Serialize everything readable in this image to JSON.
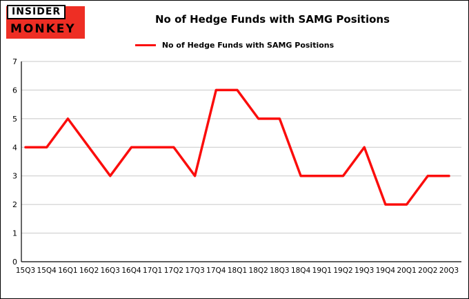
{
  "logo": {
    "line1": "INSIDER",
    "line2": "MONKEY",
    "brand_red": "#ee2e24"
  },
  "header": {
    "title": "No of Hedge Funds with SAMG Positions"
  },
  "legend": {
    "label": "No of Hedge Funds with SAMG Positions",
    "line_color": "#fb0d0c"
  },
  "chart_data": {
    "type": "line",
    "title": "No of Hedge Funds with SAMG Positions",
    "categories": [
      "15Q3",
      "15Q4",
      "16Q1",
      "16Q2",
      "16Q3",
      "16Q4",
      "17Q1",
      "17Q2",
      "17Q3",
      "17Q4",
      "18Q1",
      "18Q2",
      "18Q3",
      "18Q4",
      "19Q1",
      "19Q2",
      "19Q3",
      "19Q4",
      "20Q1",
      "20Q2",
      "20Q3"
    ],
    "values": [
      4,
      4,
      5,
      4,
      3,
      4,
      4,
      4,
      3,
      6,
      6,
      5,
      5,
      3,
      3,
      3,
      4,
      2,
      2,
      3,
      3
    ],
    "xlabel": "",
    "ylabel": "",
    "ylim": [
      0,
      7
    ],
    "yticks": [
      0,
      1,
      2,
      3,
      4,
      5,
      6,
      7
    ],
    "grid": true,
    "grid_color": "#c8c8c8",
    "line_color": "#fb0d0c",
    "legend_position": "top-center"
  }
}
